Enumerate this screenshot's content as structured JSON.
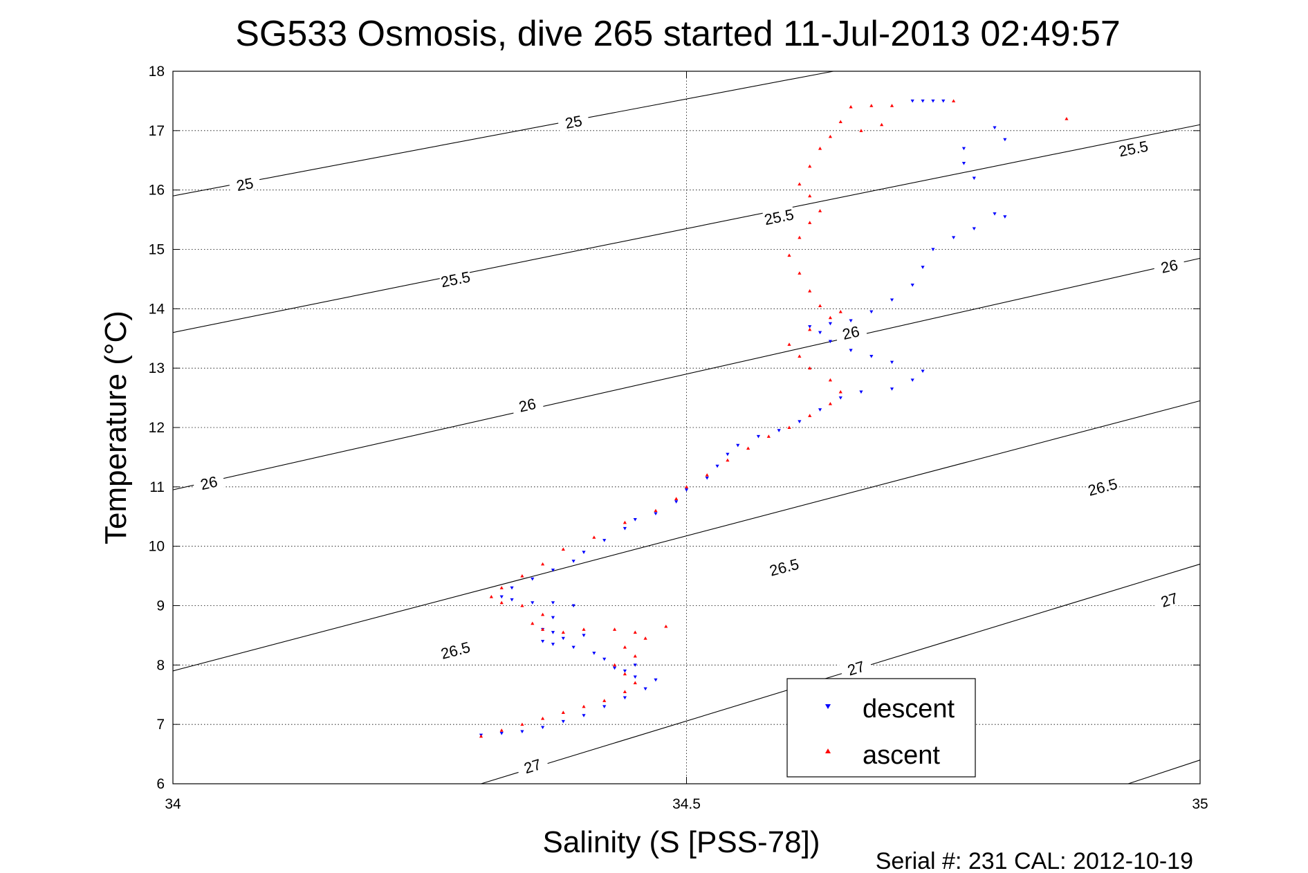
{
  "chart_data": {
    "type": "scatter",
    "title": "SG533 Osmosis, dive 265 started 11-Jul-2013 02:49:57",
    "xlabel": "Salinity (S [PSS-78])",
    "ylabel": "Temperature (°C)",
    "footer": "Serial #: 231  CAL: 2012-10-19",
    "xlim": [
      34,
      35
    ],
    "ylim": [
      6,
      18
    ],
    "xticks": [
      "34",
      "34.5",
      "35"
    ],
    "yticks": [
      "6",
      "7",
      "8",
      "9",
      "10",
      "11",
      "12",
      "13",
      "14",
      "15",
      "16",
      "17",
      "18"
    ],
    "grid": true,
    "legend": {
      "position": "bottom-right",
      "entries": [
        "descent",
        "ascent"
      ]
    },
    "contours": [
      {
        "level": "25",
        "points": [
          [
            34,
            15.9
          ],
          [
            34.643,
            18.0
          ]
        ],
        "labels": [
          [
            34.07,
            16.1
          ],
          [
            34.39,
            17.15
          ]
        ]
      },
      {
        "level": "25.5",
        "points": [
          [
            34,
            13.6
          ],
          [
            35,
            17.1
          ]
        ],
        "labels": [
          [
            34.275,
            14.5
          ],
          [
            34.59,
            15.55
          ],
          [
            34.935,
            16.7
          ]
        ]
      },
      {
        "level": "26",
        "points": [
          [
            34,
            10.95
          ],
          [
            35,
            14.85
          ]
        ],
        "labels": [
          [
            34.035,
            11.07
          ],
          [
            34.345,
            12.38
          ],
          [
            34.66,
            13.6
          ],
          [
            34.97,
            14.72
          ]
        ]
      },
      {
        "level": "26.5",
        "points": [
          [
            34,
            7.9
          ],
          [
            35,
            12.45
          ]
        ],
        "labels": [
          [
            34.275,
            8.25
          ],
          [
            34.595,
            9.65
          ],
          [
            34.905,
            11.0
          ]
        ]
      },
      {
        "level": "27",
        "points": [
          [
            34.3,
            6.0
          ],
          [
            35,
            9.7
          ]
        ],
        "labels": [
          [
            34.35,
            6.3
          ],
          [
            34.665,
            7.95
          ],
          [
            34.97,
            9.1
          ]
        ]
      },
      {
        "level": "27",
        "points": [
          [
            34.93,
            6.0
          ],
          [
            35,
            6.4
          ]
        ],
        "labels": []
      }
    ],
    "series": [
      {
        "name": "descent",
        "color": "#0000ff",
        "marker": "triangle-down",
        "points": [
          [
            34.3,
            6.82
          ],
          [
            34.32,
            6.85
          ],
          [
            34.34,
            6.88
          ],
          [
            34.36,
            6.95
          ],
          [
            34.38,
            7.05
          ],
          [
            34.4,
            7.15
          ],
          [
            34.42,
            7.3
          ],
          [
            34.44,
            7.45
          ],
          [
            34.46,
            7.6
          ],
          [
            34.47,
            7.75
          ],
          [
            34.45,
            7.8
          ],
          [
            34.44,
            7.9
          ],
          [
            34.43,
            7.95
          ],
          [
            34.45,
            8.0
          ],
          [
            34.42,
            8.1
          ],
          [
            34.41,
            8.2
          ],
          [
            34.39,
            8.3
          ],
          [
            34.37,
            8.35
          ],
          [
            34.36,
            8.4
          ],
          [
            34.38,
            8.45
          ],
          [
            34.4,
            8.5
          ],
          [
            34.37,
            8.55
          ],
          [
            34.36,
            8.6
          ],
          [
            34.37,
            8.8
          ],
          [
            34.39,
            9.0
          ],
          [
            34.37,
            9.05
          ],
          [
            34.35,
            9.05
          ],
          [
            34.33,
            9.1
          ],
          [
            34.32,
            9.15
          ],
          [
            34.33,
            9.3
          ],
          [
            34.35,
            9.45
          ],
          [
            34.37,
            9.6
          ],
          [
            34.39,
            9.75
          ],
          [
            34.4,
            9.9
          ],
          [
            34.42,
            10.1
          ],
          [
            34.44,
            10.3
          ],
          [
            34.45,
            10.45
          ],
          [
            34.47,
            10.55
          ],
          [
            34.49,
            10.75
          ],
          [
            34.5,
            10.95
          ],
          [
            34.52,
            11.15
          ],
          [
            34.53,
            11.35
          ],
          [
            34.54,
            11.55
          ],
          [
            34.55,
            11.7
          ],
          [
            34.57,
            11.85
          ],
          [
            34.59,
            11.95
          ],
          [
            34.61,
            12.1
          ],
          [
            34.63,
            12.3
          ],
          [
            34.65,
            12.5
          ],
          [
            34.67,
            12.6
          ],
          [
            34.7,
            12.65
          ],
          [
            34.72,
            12.8
          ],
          [
            34.73,
            12.95
          ],
          [
            34.7,
            13.1
          ],
          [
            34.68,
            13.2
          ],
          [
            34.66,
            13.3
          ],
          [
            34.64,
            13.45
          ],
          [
            34.63,
            13.6
          ],
          [
            34.62,
            13.7
          ],
          [
            34.64,
            13.75
          ],
          [
            34.66,
            13.8
          ],
          [
            34.68,
            13.95
          ],
          [
            34.7,
            14.15
          ],
          [
            34.72,
            14.4
          ],
          [
            34.73,
            14.7
          ],
          [
            34.74,
            15.0
          ],
          [
            34.76,
            15.2
          ],
          [
            34.78,
            15.35
          ],
          [
            34.81,
            15.55
          ],
          [
            34.8,
            15.6
          ],
          [
            34.78,
            16.2
          ],
          [
            34.77,
            16.45
          ],
          [
            34.77,
            16.7
          ],
          [
            34.8,
            17.05
          ],
          [
            34.81,
            16.85
          ],
          [
            34.72,
            17.5
          ],
          [
            34.73,
            17.5
          ],
          [
            34.74,
            17.5
          ],
          [
            34.75,
            17.5
          ]
        ]
      },
      {
        "name": "ascent",
        "color": "#ff0000",
        "marker": "triangle-up",
        "points": [
          [
            34.3,
            6.8
          ],
          [
            34.32,
            6.9
          ],
          [
            34.34,
            7.0
          ],
          [
            34.36,
            7.1
          ],
          [
            34.38,
            7.2
          ],
          [
            34.4,
            7.3
          ],
          [
            34.42,
            7.4
          ],
          [
            34.44,
            7.55
          ],
          [
            34.45,
            7.7
          ],
          [
            34.44,
            7.85
          ],
          [
            34.43,
            8.0
          ],
          [
            34.45,
            8.15
          ],
          [
            34.44,
            8.3
          ],
          [
            34.46,
            8.45
          ],
          [
            34.45,
            8.55
          ],
          [
            34.48,
            8.65
          ],
          [
            34.43,
            8.6
          ],
          [
            34.4,
            8.6
          ],
          [
            34.38,
            8.55
          ],
          [
            34.36,
            8.6
          ],
          [
            34.35,
            8.7
          ],
          [
            34.36,
            8.85
          ],
          [
            34.34,
            9.0
          ],
          [
            34.32,
            9.05
          ],
          [
            34.31,
            9.15
          ],
          [
            34.32,
            9.3
          ],
          [
            34.34,
            9.5
          ],
          [
            34.36,
            9.7
          ],
          [
            34.38,
            9.95
          ],
          [
            34.41,
            10.15
          ],
          [
            34.44,
            10.4
          ],
          [
            34.47,
            10.6
          ],
          [
            34.49,
            10.8
          ],
          [
            34.5,
            11.0
          ],
          [
            34.52,
            11.2
          ],
          [
            34.54,
            11.45
          ],
          [
            34.56,
            11.65
          ],
          [
            34.58,
            11.85
          ],
          [
            34.6,
            12.0
          ],
          [
            34.62,
            12.2
          ],
          [
            34.64,
            12.4
          ],
          [
            34.65,
            12.6
          ],
          [
            34.64,
            12.8
          ],
          [
            34.62,
            13.0
          ],
          [
            34.61,
            13.2
          ],
          [
            34.6,
            13.4
          ],
          [
            34.62,
            13.65
          ],
          [
            34.64,
            13.85
          ],
          [
            34.65,
            13.95
          ],
          [
            34.63,
            14.05
          ],
          [
            34.62,
            14.3
          ],
          [
            34.61,
            14.6
          ],
          [
            34.6,
            14.9
          ],
          [
            34.61,
            15.2
          ],
          [
            34.62,
            15.45
          ],
          [
            34.63,
            15.65
          ],
          [
            34.62,
            15.9
          ],
          [
            34.61,
            16.1
          ],
          [
            34.62,
            16.4
          ],
          [
            34.63,
            16.7
          ],
          [
            34.64,
            16.9
          ],
          [
            34.65,
            17.15
          ],
          [
            34.66,
            17.4
          ],
          [
            34.68,
            17.42
          ],
          [
            34.7,
            17.42
          ],
          [
            34.67,
            17.0
          ],
          [
            34.69,
            17.1
          ],
          [
            34.76,
            17.5
          ],
          [
            34.87,
            17.2
          ]
        ]
      }
    ]
  }
}
